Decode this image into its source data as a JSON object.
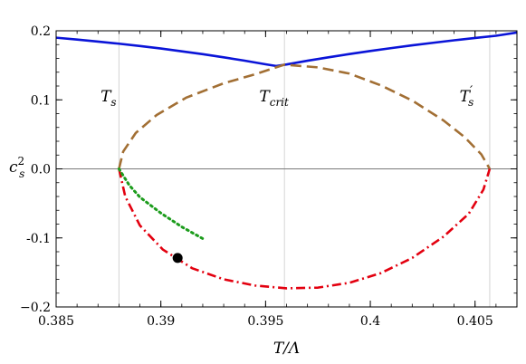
{
  "chart_data": {
    "type": "line",
    "xlabel": "T/Λ",
    "ylabel_main": "c",
    "ylabel_sub": "s",
    "ylabel_sup": "2",
    "xlim": [
      0.385,
      0.407
    ],
    "ylim": [
      -0.2,
      0.2
    ],
    "x_ticks": [
      {
        "value": 0.385,
        "label": "0.385"
      },
      {
        "value": 0.39,
        "label": "0.39"
      },
      {
        "value": 0.395,
        "label": "0.395"
      },
      {
        "value": 0.4,
        "label": "0.4"
      },
      {
        "value": 0.405,
        "label": "0.405"
      }
    ],
    "y_ticks": [
      {
        "value": 0.2,
        "label": "0.2"
      },
      {
        "value": 0.1,
        "label": "0.1"
      },
      {
        "value": 0.0,
        "label": "0.0"
      },
      {
        "value": -0.1,
        "label": "-0.1"
      },
      {
        "value": -0.2,
        "label": "−0.2"
      }
    ],
    "vertical_reference_lines": [
      0.388,
      0.3959,
      0.4057
    ],
    "horizontal_reference_line": 0.0,
    "annotations": [
      {
        "main": "T",
        "sub": "s",
        "prime": "",
        "x": 0.3875,
        "y": 0.098
      },
      {
        "main": "T",
        "sub": "crit",
        "prime": "",
        "x": 0.3954,
        "y": 0.098
      },
      {
        "main": "T",
        "sub": "s",
        "prime": "′",
        "x": 0.4046,
        "y": 0.098
      }
    ],
    "series": [
      {
        "style": "solid",
        "color": "#0a14d8",
        "x": [
          0.385,
          0.386,
          0.387,
          0.388,
          0.389,
          0.39,
          0.391,
          0.392,
          0.393,
          0.394,
          0.395,
          0.3955
        ],
        "y": [
          0.19,
          0.1873,
          0.1844,
          0.1813,
          0.1779,
          0.1743,
          0.1703,
          0.1661,
          0.1616,
          0.1567,
          0.1515,
          0.149
        ]
      },
      {
        "style": "solid",
        "color": "#0a14d8",
        "x": [
          0.3955,
          0.396,
          0.397,
          0.398,
          0.399,
          0.4,
          0.401,
          0.402,
          0.403,
          0.404,
          0.405,
          0.406,
          0.407
        ],
        "y": [
          0.149,
          0.1512,
          0.1566,
          0.1616,
          0.1663,
          0.1707,
          0.1749,
          0.1789,
          0.1826,
          0.1862,
          0.1896,
          0.1928,
          0.1975
        ]
      },
      {
        "style": "dashed",
        "color": "#a26f34",
        "x": [
          0.388,
          0.3882,
          0.3888,
          0.3898,
          0.3912,
          0.393,
          0.3945,
          0.3959,
          0.3975,
          0.399,
          0.4005,
          0.402,
          0.4035,
          0.4045,
          0.4053,
          0.4057
        ],
        "y": [
          0.0,
          0.025,
          0.052,
          0.078,
          0.103,
          0.124,
          0.137,
          0.151,
          0.147,
          0.138,
          0.121,
          0.099,
          0.07,
          0.046,
          0.021,
          0.0
        ]
      },
      {
        "style": "dashdot",
        "color": "#e3000f",
        "x": [
          0.388,
          0.3883,
          0.389,
          0.3901,
          0.3915,
          0.393,
          0.3945,
          0.396,
          0.3975,
          0.399,
          0.4005,
          0.402,
          0.4035,
          0.4047,
          0.4054,
          0.4057
        ],
        "y": [
          0.0,
          -0.04,
          -0.082,
          -0.117,
          -0.144,
          -0.16,
          -0.169,
          -0.173,
          -0.172,
          -0.165,
          -0.151,
          -0.129,
          -0.098,
          -0.065,
          -0.03,
          0.0
        ]
      },
      {
        "style": "dotted",
        "color": "#1c9c1c",
        "x": [
          0.388,
          0.3885,
          0.389,
          0.39,
          0.391,
          0.392
        ],
        "y": [
          0.0,
          -0.024,
          -0.041,
          -0.064,
          -0.084,
          -0.101
        ]
      }
    ],
    "point": {
      "x": 0.3908,
      "y": -0.129,
      "color": "#000000"
    }
  }
}
